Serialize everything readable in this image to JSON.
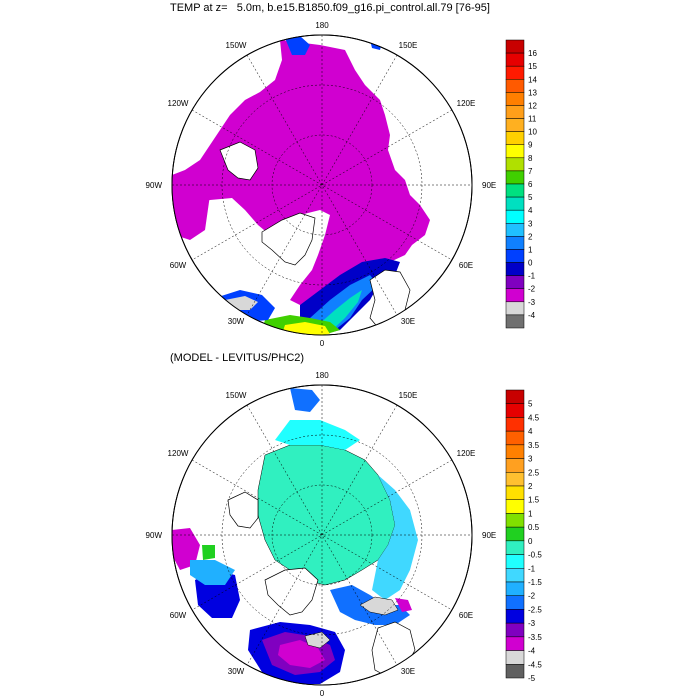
{
  "panels": [
    {
      "title": "TEMP at z=   5.0m, b.e15.B1850.f09_g16.pi_control.all.79 [76-95]",
      "lon_labels": [
        "180",
        "150E",
        "120E",
        "90E",
        "60E",
        "30E",
        "0",
        "30W",
        "60W",
        "90W",
        "120W",
        "150W"
      ],
      "colorbar": {
        "labels": [
          "16",
          "15",
          "14",
          "13",
          "12",
          "11",
          "10",
          "9",
          "8",
          "7",
          "6",
          "5",
          "4",
          "3",
          "2",
          "1",
          "0",
          "-1",
          "-2",
          "-3",
          "-4"
        ],
        "colors": [
          "#c80000",
          "#e60000",
          "#ff1a00",
          "#ff5a00",
          "#ff7f00",
          "#ff9f1a",
          "#ffb020",
          "#ffd000",
          "#ffff00",
          "#b0e000",
          "#40d000",
          "#00e080",
          "#00e0c0",
          "#00ffff",
          "#20c0ff",
          "#1080ff",
          "#0040ff",
          "#0000c8",
          "#8000c0",
          "#d000d0",
          "#d8d8d8",
          "#707070"
        ]
      }
    },
    {
      "title": "(MODEL - LEVITUS/PHC2)",
      "lon_labels": [
        "180",
        "150E",
        "120E",
        "90E",
        "60E",
        "30E",
        "0",
        "30W",
        "60W",
        "90W",
        "120W",
        "150W"
      ],
      "colorbar": {
        "labels": [
          "5",
          "4.5",
          "4",
          "3.5",
          "3",
          "2.5",
          "2",
          "1.5",
          "1",
          "0.5",
          "0",
          "-0.5",
          "-1",
          "-1.5",
          "-2",
          "-2.5",
          "-3",
          "-3.5",
          "-4",
          "-4.5",
          "-5"
        ],
        "colors": [
          "#c80000",
          "#e60000",
          "#ff3000",
          "#ff6000",
          "#ff8000",
          "#ffa020",
          "#ffc030",
          "#ffe000",
          "#ffff00",
          "#80e000",
          "#20d020",
          "#30f0c0",
          "#20ffff",
          "#40d8ff",
          "#20b0ff",
          "#1070ff",
          "#0000e0",
          "#8000c0",
          "#d000d0",
          "#d8d8d8",
          "#606060"
        ]
      }
    }
  ]
}
